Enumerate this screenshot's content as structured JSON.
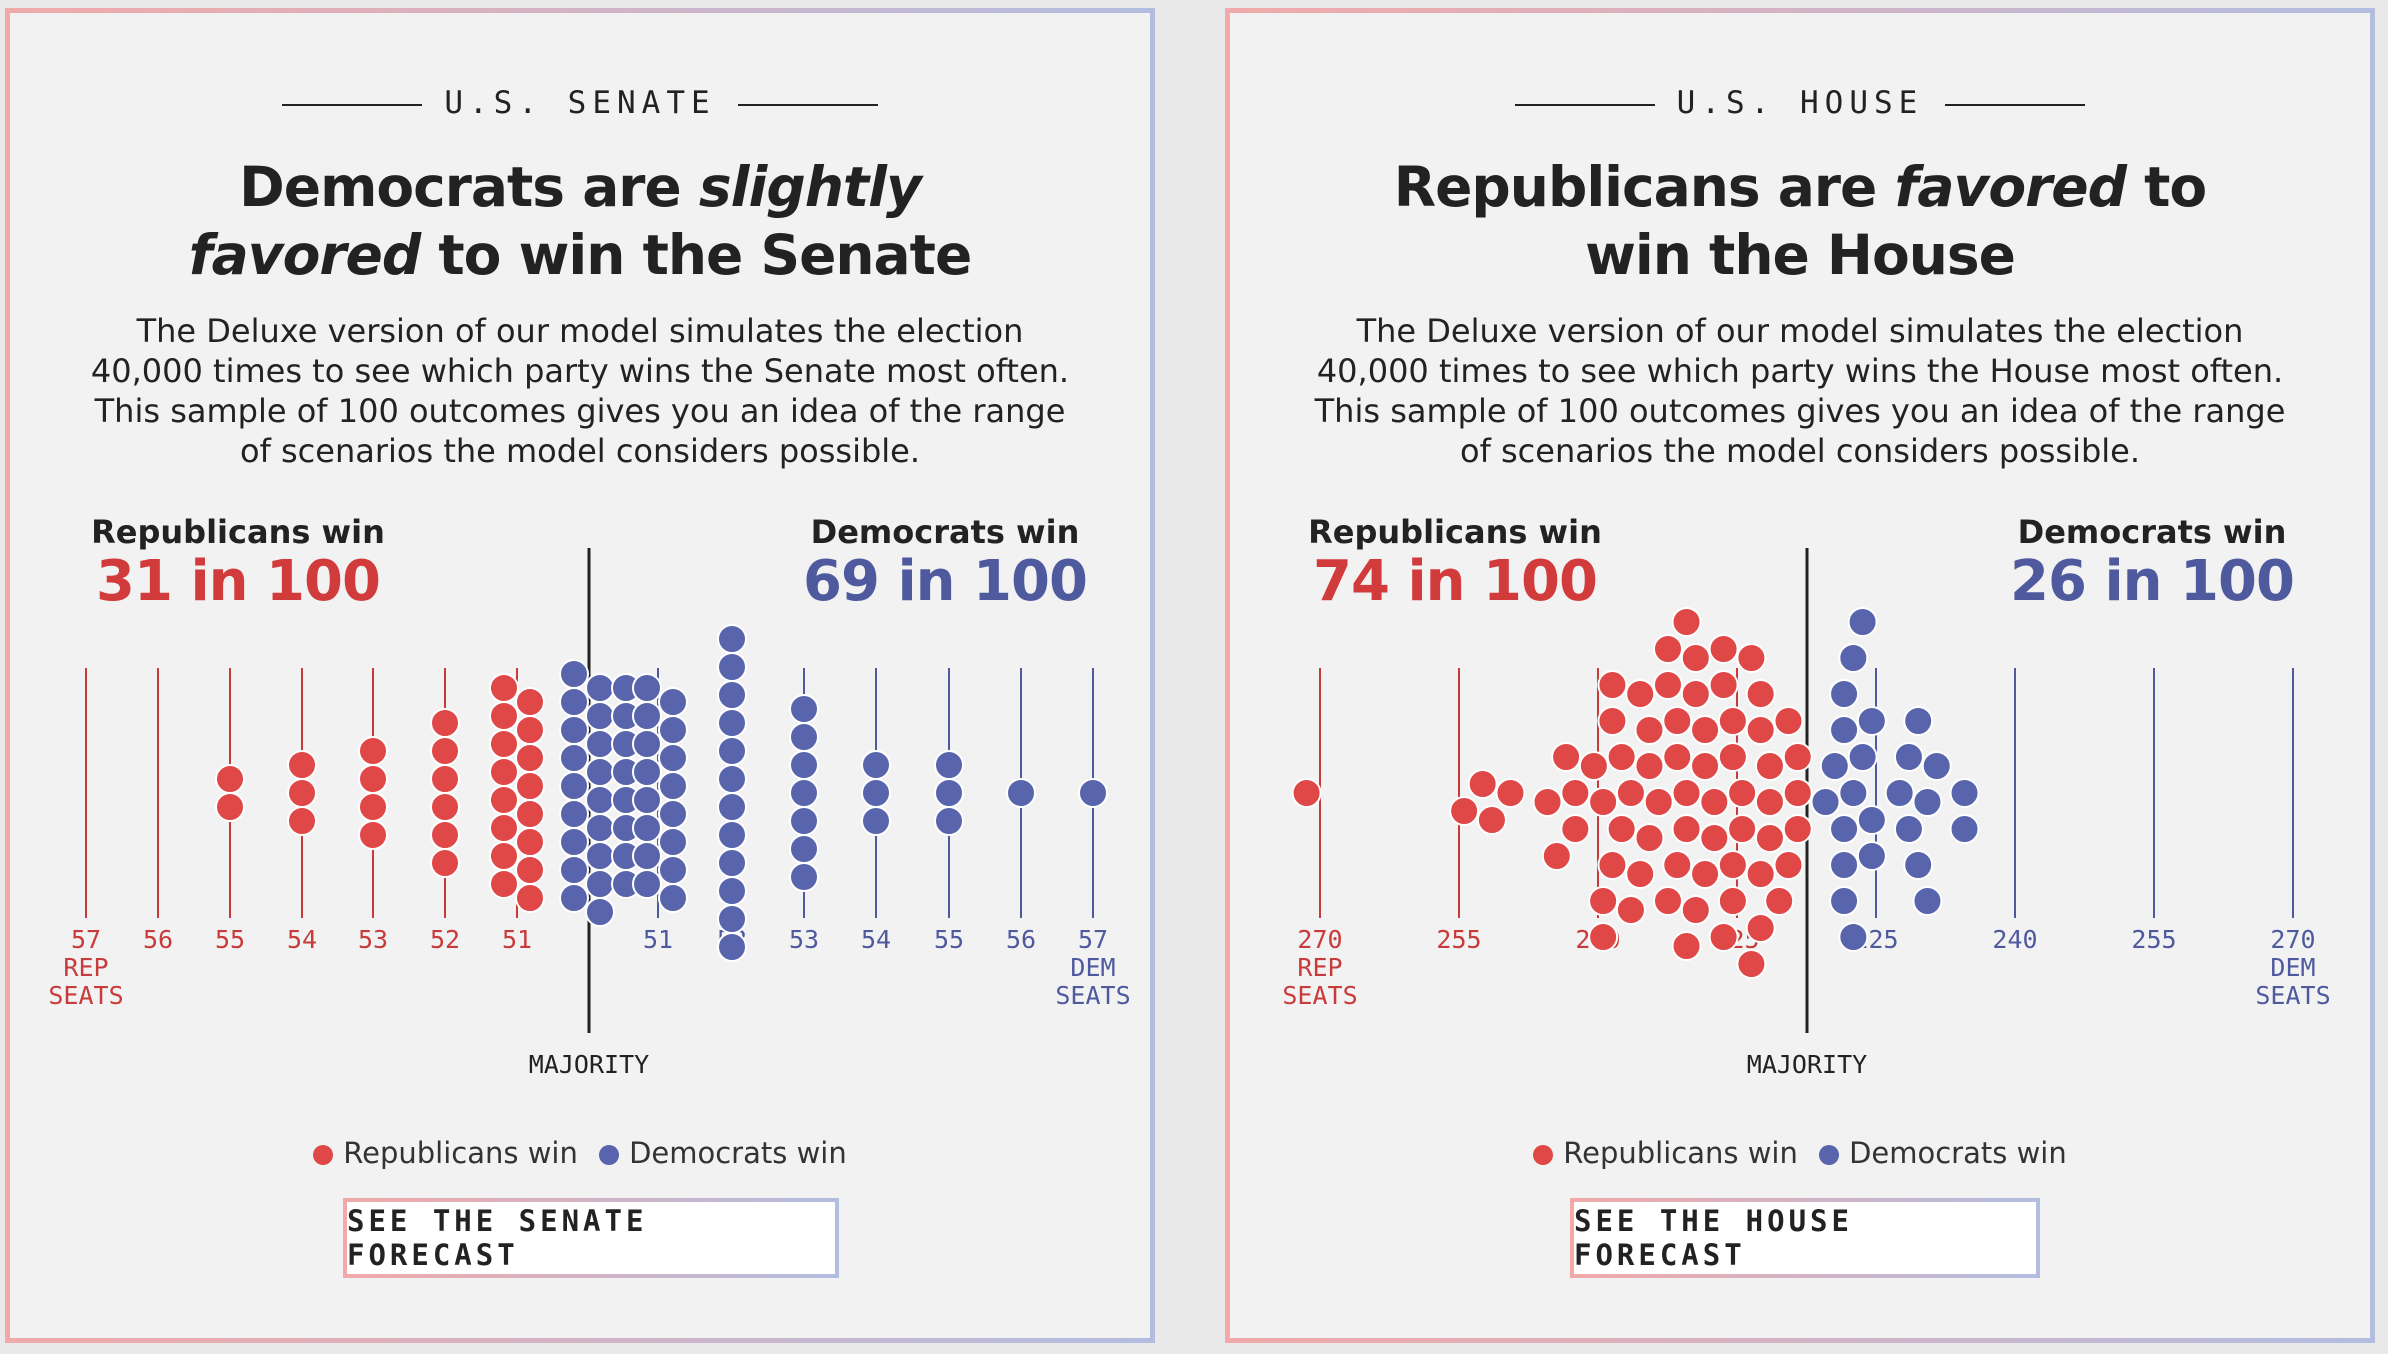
{
  "colors": {
    "rep": "#e04848",
    "dem": "#5865ad",
    "rep_line": "#c93b3b",
    "dem_line": "#4f5a9e"
  },
  "legend": {
    "rep": "Republicans win",
    "dem": "Democrats win"
  },
  "senate": {
    "kicker": "U.S. SENATE",
    "headline_pre": "Democrats are ",
    "headline_em": "slightly favored",
    "headline_post": " to win the Senate",
    "dek": "The Deluxe version of our model simulates the election 40,000 times to see which party wins the Senate most often. This sample of 100 outcomes gives you an idea of the range of scenarios the model considers possible.",
    "rep_label": "Republicans win",
    "rep_value": "31 in 100",
    "dem_label": "Democrats win",
    "dem_value": "69 in 100",
    "majority_label": "MAJORITY",
    "cta": "SEE THE SENATE FORECAST"
  },
  "house": {
    "kicker": "U.S. HOUSE",
    "headline_pre": "Republicans are ",
    "headline_em": "favored",
    "headline_post": " to win the House",
    "dek": "The Deluxe version of our model simulates the election 40,000 times to see which party wins the House most often. This sample of 100 outcomes gives you an idea of the range of scenarios the model considers possible.",
    "rep_label": "Republicans win",
    "rep_value": "74 in 100",
    "dem_label": "Democrats win",
    "dem_value": "26 in 100",
    "majority_label": "MAJORITY",
    "cta": "SEE THE HOUSE FORECAST"
  },
  "chart_data": [
    {
      "type": "scatter",
      "title": "Democrats are slightly favored to win the Senate",
      "x_ticks": [
        {
          "label": "57",
          "sub": [
            "REP",
            "SEATS"
          ],
          "party": "rep"
        },
        {
          "label": "56",
          "party": "rep"
        },
        {
          "label": "55",
          "party": "rep"
        },
        {
          "label": "54",
          "party": "rep"
        },
        {
          "label": "53",
          "party": "rep"
        },
        {
          "label": "52",
          "party": "rep"
        },
        {
          "label": "51",
          "party": "rep"
        },
        {
          "label": "51",
          "party": "dem"
        },
        {
          "label": "52",
          "party": "dem"
        },
        {
          "label": "53",
          "party": "dem"
        },
        {
          "label": "54",
          "party": "dem"
        },
        {
          "label": "55",
          "party": "dem"
        },
        {
          "label": "56",
          "party": "dem"
        },
        {
          "label": "57",
          "sub": [
            "DEM",
            "SEATS"
          ],
          "party": "dem"
        }
      ],
      "majority_label": "MAJORITY",
      "outcome_counts": [
        {
          "party": "rep",
          "seats": 57,
          "count": 0
        },
        {
          "party": "rep",
          "seats": 56,
          "count": 0
        },
        {
          "party": "rep",
          "seats": 55,
          "count": 2
        },
        {
          "party": "rep",
          "seats": 54,
          "count": 3
        },
        {
          "party": "rep",
          "seats": 53,
          "count": 4
        },
        {
          "party": "rep",
          "seats": 52,
          "count": 6
        },
        {
          "party": "rep",
          "seats": 51,
          "count": 16
        },
        {
          "party": "dem",
          "seats": 50,
          "count": 26
        },
        {
          "party": "dem",
          "seats": 51,
          "count": 16
        },
        {
          "party": "dem",
          "seats": 52,
          "count": 12
        },
        {
          "party": "dem",
          "seats": 53,
          "count": 7
        },
        {
          "party": "dem",
          "seats": 54,
          "count": 3
        },
        {
          "party": "dem",
          "seats": 55,
          "count": 3
        },
        {
          "party": "dem",
          "seats": 56,
          "count": 1
        },
        {
          "party": "dem",
          "seats": 57,
          "count": 1
        }
      ],
      "summary": {
        "rep": "31 in 100",
        "dem": "69 in 100"
      }
    },
    {
      "type": "scatter",
      "title": "Republicans are favored to win the House",
      "x_ticks": [
        {
          "label": "270",
          "sub": [
            "REP",
            "SEATS"
          ],
          "party": "rep"
        },
        {
          "label": "255",
          "party": "rep"
        },
        {
          "label": "240",
          "party": "rep"
        },
        {
          "label": "225",
          "party": "rep"
        },
        {
          "label": "225",
          "party": "dem"
        },
        {
          "label": "240",
          "party": "dem"
        },
        {
          "label": "255",
          "party": "dem"
        },
        {
          "label": "270",
          "sub": [
            "DEM",
            "SEATS"
          ],
          "party": "dem"
        }
      ],
      "majority_label": "MAJORITY",
      "outcome_counts": [
        {
          "party": "rep",
          "count": 74,
          "range": [
            218,
            272
          ]
        },
        {
          "party": "dem",
          "count": 26,
          "range": [
            218,
            236
          ]
        }
      ],
      "summary": {
        "rep": "74 in 100",
        "dem": "26 in 100"
      }
    }
  ]
}
